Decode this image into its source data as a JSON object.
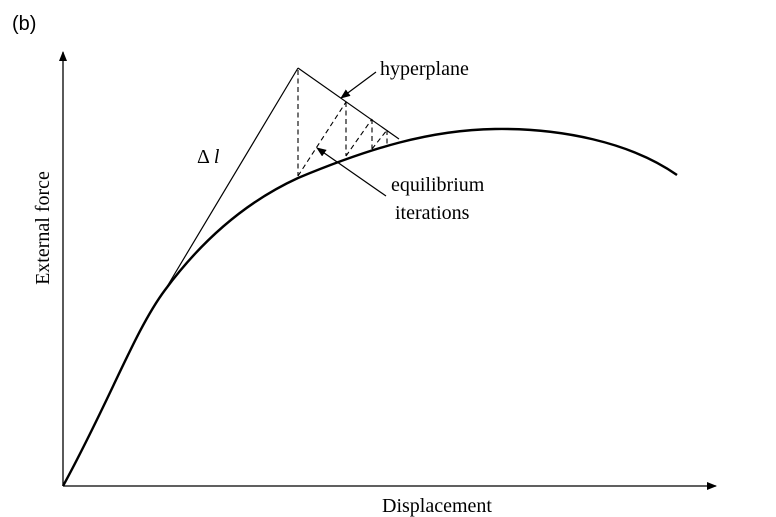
{
  "panel_label": "(b)",
  "x_axis_label": "Displacement",
  "y_axis_label": "External force",
  "annotations": {
    "delta_symbol": "Δ",
    "delta_var": "l",
    "hyperplane": "hyperplane",
    "equilibrium_line1": "equilibrium",
    "equilibrium_line2": "iterations"
  }
}
